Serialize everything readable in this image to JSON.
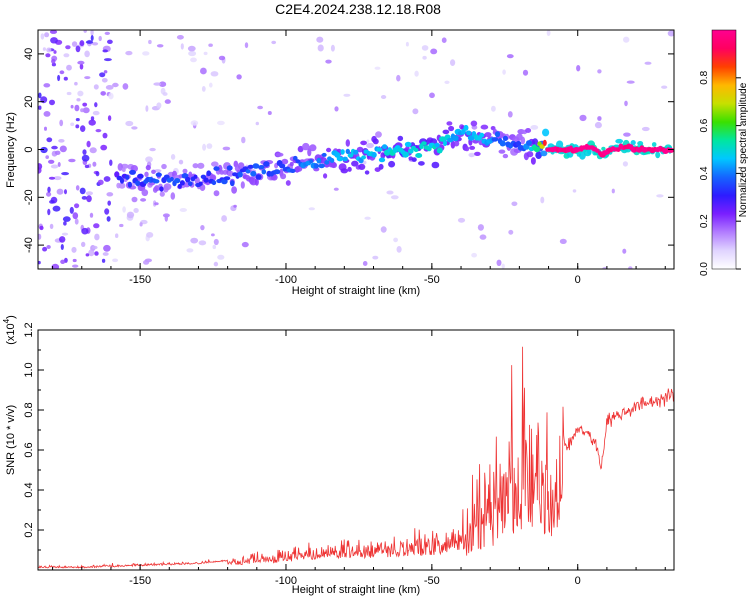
{
  "title": "C2E4.2024.238.12.18.R08",
  "chart_data": [
    {
      "type": "heatmap",
      "xlabel": "Height of straight line (km)",
      "ylabel": "Frequency (Hz)",
      "xlim": [
        -185,
        33
      ],
      "ylim": [
        -50,
        50
      ],
      "xticks": [
        -150,
        -100,
        -50,
        0
      ],
      "yticks": [
        -40,
        -20,
        0,
        20,
        40
      ],
      "colorbar": {
        "label": "Normalized spectral amplitude",
        "range": [
          0,
          1
        ],
        "ticks": [
          0.0,
          0.2,
          0.4,
          0.6,
          0.8
        ],
        "tick_labels": [
          "0.0",
          "0.2",
          "0.4",
          "0.6",
          "0.8"
        ],
        "colormap": [
          "#ffffff",
          "#e0d4ff",
          "#b27dff",
          "#7a1fff",
          "#2d1cff",
          "#1565ff",
          "#00c8ff",
          "#00e6a0",
          "#3ae000",
          "#c6e000",
          "#ffb800",
          "#ff4000",
          "#ff0060",
          "#ff0090"
        ]
      },
      "ridge": {
        "x": [
          -158,
          -150,
          -140,
          -130,
          -120,
          -110,
          -100,
          -90,
          -80,
          -70,
          -60,
          -50,
          -44,
          -40,
          -36,
          -30,
          -26,
          -22,
          -18,
          -14,
          -10,
          -5,
          0,
          5,
          8,
          12,
          16,
          20,
          25,
          32
        ],
        "y": [
          -12,
          -13,
          -13,
          -12,
          -11,
          -9,
          -7,
          -5,
          -3,
          -2,
          0,
          2,
          5,
          7,
          6,
          4,
          4,
          2,
          1,
          0,
          0,
          0,
          0,
          1,
          -2,
          0,
          1,
          0,
          0,
          0
        ],
        "amplitude": [
          0.25,
          0.3,
          0.3,
          0.3,
          0.3,
          0.32,
          0.33,
          0.36,
          0.4,
          0.42,
          0.45,
          0.45,
          0.42,
          0.4,
          0.42,
          0.38,
          0.33,
          0.32,
          0.32,
          0.5,
          0.95,
          0.95,
          0.95,
          0.95,
          0.95,
          0.95,
          0.95,
          0.95,
          0.95,
          0.95
        ]
      }
    },
    {
      "type": "line",
      "xlabel": "Height of straight line (km)",
      "ylabel": "SNR (10 * v/v)",
      "y_multiplier": "(x10",
      "y_multiplier_exp": "4",
      "xlim": [
        -185,
        33
      ],
      "ylim": [
        0,
        1.2
      ],
      "xticks": [
        -150,
        -100,
        -50,
        0
      ],
      "yticks": [
        0.2,
        0.4,
        0.6,
        0.8,
        1.0,
        1.2
      ],
      "ytick_labels": [
        "0.2",
        "0.4",
        "0.6",
        "0.8",
        "1.0",
        "1.2"
      ],
      "color": "#ee3333",
      "series": [
        {
          "x": [
            -185,
            -170,
            -160,
            -150,
            -140,
            -130,
            -120,
            -110,
            -100,
            -90,
            -80,
            -70,
            -60,
            -50,
            -45,
            -40,
            -35,
            -30,
            -25,
            -20,
            -18,
            -15,
            -12,
            -10,
            -8,
            -5,
            -3,
            0,
            3,
            5,
            7,
            8,
            10,
            15,
            20,
            25,
            30,
            33
          ],
          "y": [
            0.01,
            0.01,
            0.015,
            0.02,
            0.025,
            0.03,
            0.045,
            0.06,
            0.08,
            0.1,
            0.12,
            0.12,
            0.13,
            0.14,
            0.16,
            0.2,
            0.3,
            0.38,
            0.48,
            0.62,
            0.7,
            0.62,
            0.58,
            0.55,
            0.55,
            0.65,
            0.62,
            0.72,
            0.68,
            0.66,
            0.6,
            0.5,
            0.75,
            0.78,
            0.82,
            0.84,
            0.86,
            0.88
          ]
        }
      ]
    }
  ]
}
